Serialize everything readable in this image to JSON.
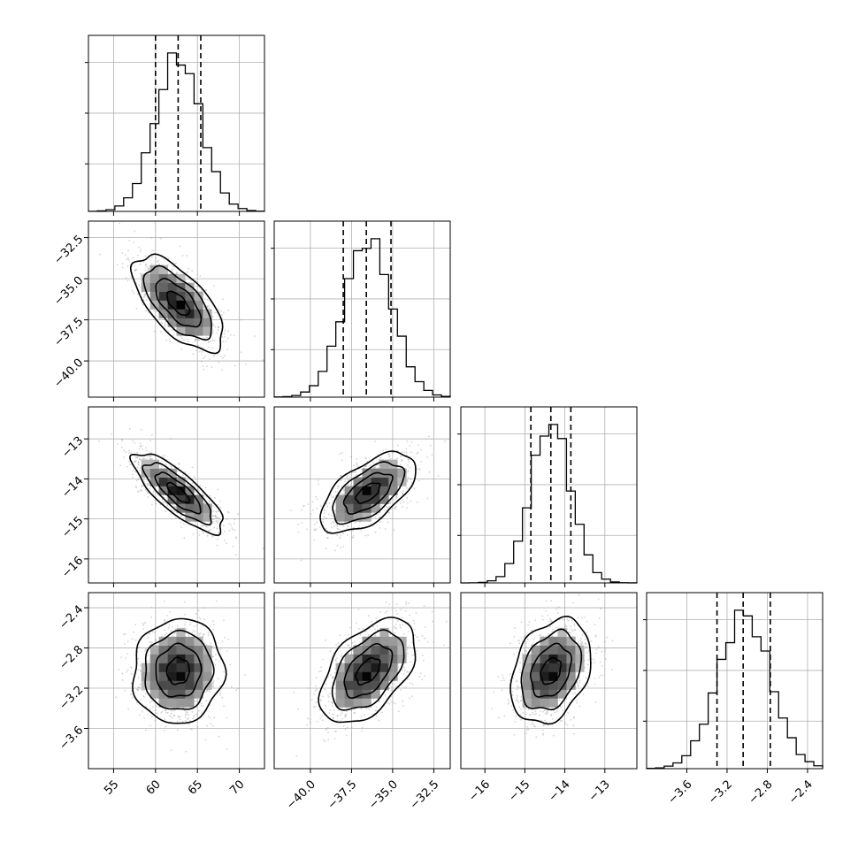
{
  "chart_data": {
    "type": "corner",
    "colors": {
      "line": "#000000",
      "grid": "#b0b0b0",
      "scatter": "#9e9e9e"
    },
    "grid": true,
    "parameters": [
      {
        "mean": 62.7,
        "sd": 2.7,
        "range": [
          52,
          73
        ],
        "ticks": [
          55,
          60,
          65,
          70
        ],
        "tick_labels": [
          "55",
          "60",
          "65",
          "70"
        ],
        "quantiles": [
          60.0,
          62.7,
          65.4
        ]
      },
      {
        "mean": -36.5,
        "sd": 1.45,
        "range": [
          -42.2,
          -31.5
        ],
        "ticks": [
          -40.0,
          -37.5,
          -35.0,
          -32.5
        ],
        "tick_labels": [
          "−40.0",
          "−37.5",
          "−35.0",
          "−32.5"
        ],
        "quantiles": [
          -38.0,
          -36.6,
          -35.1
        ]
      },
      {
        "mean": -14.35,
        "sd": 0.5,
        "range": [
          -16.6,
          -12.2
        ],
        "ticks": [
          -16,
          -15,
          -14,
          -13
        ],
        "tick_labels": [
          "−16",
          "−15",
          "−14",
          "−13"
        ],
        "quantiles": [
          -14.85,
          -14.35,
          -13.85
        ]
      },
      {
        "mean": -3.03,
        "sd": 0.26,
        "range": [
          -4.0,
          -2.25
        ],
        "ticks": [
          -3.6,
          -3.2,
          -2.8,
          -2.4
        ],
        "tick_labels": [
          "−3.6",
          "−3.2",
          "−2.8",
          "−2.4"
        ],
        "quantiles": [
          -3.3,
          -3.04,
          -2.77
        ]
      }
    ],
    "correlations": [
      [
        1.0,
        -0.65,
        -0.8,
        0.05
      ],
      [
        -0.65,
        1.0,
        0.6,
        0.5
      ],
      [
        -0.8,
        0.6,
        1.0,
        0.3
      ],
      [
        0.05,
        0.5,
        0.3,
        1.0
      ]
    ],
    "contour_levels_sigma": [
      0.5,
      1.0,
      1.5,
      2.0
    ],
    "hist_bins": 20
  }
}
